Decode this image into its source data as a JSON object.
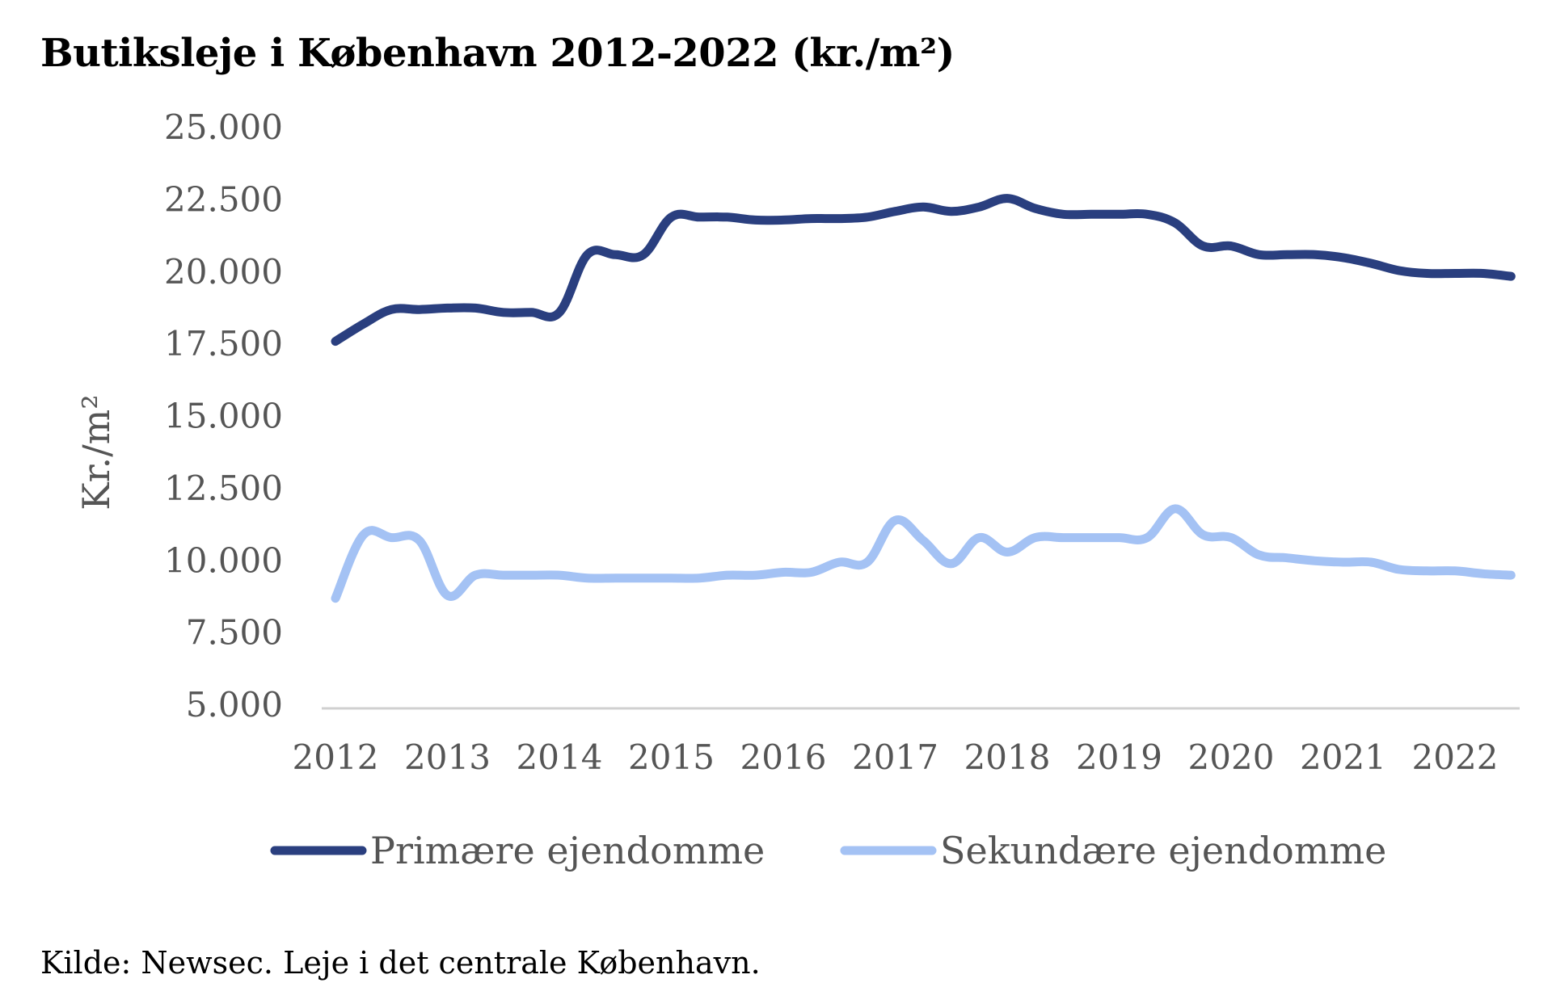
{
  "chart_data": {
    "type": "line",
    "title": "Butiksleje i København 2012-2022 (kr./m²)",
    "ylabel": "Kr./m²",
    "xlabel": "",
    "ylim": [
      5000,
      25000
    ],
    "xlim": [
      2012,
      2022.5
    ],
    "y_ticks": [
      {
        "value": 5000,
        "label": "5.000"
      },
      {
        "value": 7500,
        "label": "7.500"
      },
      {
        "value": 10000,
        "label": "10.000"
      },
      {
        "value": 12500,
        "label": "12.500"
      },
      {
        "value": 15000,
        "label": "15.000"
      },
      {
        "value": 17500,
        "label": "17.500"
      },
      {
        "value": 20000,
        "label": "20.000"
      },
      {
        "value": 22500,
        "label": "22.500"
      },
      {
        "value": 25000,
        "label": "25.000"
      }
    ],
    "x_ticks": [
      {
        "value": 2012,
        "label": "2012"
      },
      {
        "value": 2013,
        "label": "2013"
      },
      {
        "value": 2014,
        "label": "2014"
      },
      {
        "value": 2015,
        "label": "2015"
      },
      {
        "value": 2016,
        "label": "2016"
      },
      {
        "value": 2017,
        "label": "2017"
      },
      {
        "value": 2018,
        "label": "2018"
      },
      {
        "value": 2019,
        "label": "2019"
      },
      {
        "value": 2020,
        "label": "2020"
      },
      {
        "value": 2021,
        "label": "2021"
      },
      {
        "value": 2022,
        "label": "2022"
      }
    ],
    "grid": false,
    "legend_position": "bottom-center",
    "series": [
      {
        "name": "Primære ejendomme",
        "color": "#2a3f7f",
        "points": [
          [
            2012.0,
            17600
          ],
          [
            2012.25,
            18200
          ],
          [
            2012.5,
            18700
          ],
          [
            2012.75,
            18700
          ],
          [
            2013.0,
            18750
          ],
          [
            2013.25,
            18750
          ],
          [
            2013.5,
            18600
          ],
          [
            2013.75,
            18600
          ],
          [
            2014.0,
            18600
          ],
          [
            2014.25,
            20600
          ],
          [
            2014.5,
            20600
          ],
          [
            2014.75,
            20600
          ],
          [
            2015.0,
            21900
          ],
          [
            2015.25,
            21900
          ],
          [
            2015.5,
            21900
          ],
          [
            2015.75,
            21800
          ],
          [
            2016.0,
            21800
          ],
          [
            2016.25,
            21850
          ],
          [
            2016.5,
            21850
          ],
          [
            2016.75,
            21900
          ],
          [
            2017.0,
            22100
          ],
          [
            2017.25,
            22250
          ],
          [
            2017.5,
            22100
          ],
          [
            2017.75,
            22250
          ],
          [
            2018.0,
            22550
          ],
          [
            2018.25,
            22200
          ],
          [
            2018.5,
            22000
          ],
          [
            2018.75,
            22000
          ],
          [
            2019.0,
            22000
          ],
          [
            2019.25,
            22000
          ],
          [
            2019.5,
            21700
          ],
          [
            2019.75,
            20900
          ],
          [
            2020.0,
            20900
          ],
          [
            2020.25,
            20600
          ],
          [
            2020.5,
            20600
          ],
          [
            2020.75,
            20600
          ],
          [
            2021.0,
            20500
          ],
          [
            2021.25,
            20300
          ],
          [
            2021.5,
            20050
          ],
          [
            2021.75,
            19950
          ],
          [
            2022.0,
            19950
          ],
          [
            2022.25,
            19950
          ],
          [
            2022.5,
            19850
          ]
        ]
      },
      {
        "name": "Sekundære ejendomme",
        "color": "#a4c2f4",
        "points": [
          [
            2012.0,
            8700
          ],
          [
            2012.25,
            10900
          ],
          [
            2012.5,
            10800
          ],
          [
            2012.75,
            10700
          ],
          [
            2013.0,
            8800
          ],
          [
            2013.25,
            9500
          ],
          [
            2013.5,
            9500
          ],
          [
            2013.75,
            9500
          ],
          [
            2014.0,
            9500
          ],
          [
            2014.25,
            9400
          ],
          [
            2014.5,
            9400
          ],
          [
            2014.75,
            9400
          ],
          [
            2015.0,
            9400
          ],
          [
            2015.25,
            9400
          ],
          [
            2015.5,
            9500
          ],
          [
            2015.75,
            9500
          ],
          [
            2016.0,
            9600
          ],
          [
            2016.25,
            9600
          ],
          [
            2016.5,
            9950
          ],
          [
            2016.75,
            9950
          ],
          [
            2017.0,
            11400
          ],
          [
            2017.25,
            10700
          ],
          [
            2017.5,
            9900
          ],
          [
            2017.75,
            10800
          ],
          [
            2018.0,
            10300
          ],
          [
            2018.25,
            10800
          ],
          [
            2018.5,
            10800
          ],
          [
            2018.75,
            10800
          ],
          [
            2019.0,
            10800
          ],
          [
            2019.25,
            10800
          ],
          [
            2019.5,
            11800
          ],
          [
            2019.75,
            10900
          ],
          [
            2020.0,
            10800
          ],
          [
            2020.25,
            10200
          ],
          [
            2020.5,
            10100
          ],
          [
            2020.75,
            10000
          ],
          [
            2021.0,
            9950
          ],
          [
            2021.25,
            9950
          ],
          [
            2021.5,
            9700
          ],
          [
            2021.75,
            9650
          ],
          [
            2022.0,
            9650
          ],
          [
            2022.25,
            9550
          ],
          [
            2022.5,
            9500
          ]
        ]
      }
    ],
    "source": "Kilde: Newsec. Leje i det centrale København."
  }
}
